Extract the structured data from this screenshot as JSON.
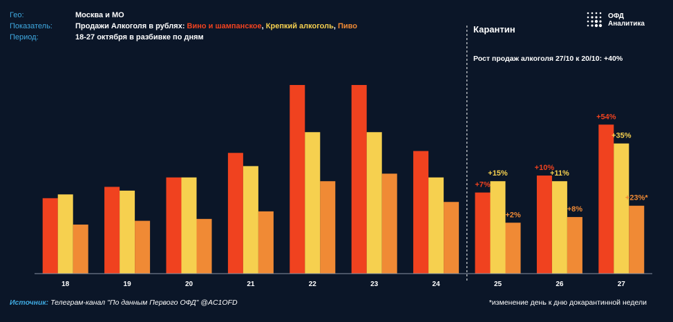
{
  "meta": {
    "geo_label": "Гео:",
    "geo_value": "Москва и МО",
    "indicator_label": "Показатель:",
    "indicator_prefix": "Продажи Алкоголя в рублях: ",
    "indicator_wine": "Вино и шампанское",
    "indicator_sep1": ", ",
    "indicator_strong": "Крепкий алкоголь",
    "indicator_sep2": ", ",
    "indicator_beer": "Пиво",
    "period_label": "Период:",
    "period_value": "18-27 октября в разбивке по дням"
  },
  "logo": {
    "icon": "dots-logo-icon",
    "line1": "ОФД",
    "line2": "Аналитика"
  },
  "quarantine": {
    "title": "Карантин",
    "growth_note": "Рост продаж алкоголя 27/10 к 20/10: +40%"
  },
  "footer": {
    "source_label": "Источник:",
    "source_text": " Телеграм-канал \"По данным Первого ОФД\" @AC1OFD",
    "note": "*изменение день к дню докарантинной недели"
  },
  "colors": {
    "wine": "#f0421f",
    "strong": "#f6d04f",
    "beer": "#f08a35",
    "background": "#0b1628"
  },
  "chart_data": {
    "type": "bar",
    "categories": [
      "18",
      "19",
      "20",
      "21",
      "22",
      "23",
      "24",
      "25",
      "26",
      "27"
    ],
    "series": [
      {
        "name": "Вино и шампанское",
        "values": [
          40,
          46,
          51,
          64,
          100,
          100,
          65,
          43,
          52,
          79
        ]
      },
      {
        "name": "Крепкий алкоголь",
        "values": [
          42,
          44,
          51,
          57,
          75,
          75,
          51,
          49,
          49,
          69
        ]
      },
      {
        "name": "Пиво",
        "values": [
          26,
          28,
          29,
          33,
          49,
          53,
          38,
          27,
          30,
          36
        ]
      }
    ],
    "annotations": [
      {
        "category": "25",
        "series": 0,
        "text": "+7%"
      },
      {
        "category": "25",
        "series": 1,
        "text": "+15%"
      },
      {
        "category": "25",
        "series": 2,
        "text": "+2%"
      },
      {
        "category": "26",
        "series": 0,
        "text": "+10%"
      },
      {
        "category": "26",
        "series": 1,
        "text": "+11%"
      },
      {
        "category": "26",
        "series": 2,
        "text": "+8%"
      },
      {
        "category": "27",
        "series": 0,
        "text": "+54%"
      },
      {
        "category": "27",
        "series": 1,
        "text": "+35%"
      },
      {
        "category": "27",
        "series": 2,
        "text": "+23%*"
      }
    ],
    "divider_after_category": "24",
    "ylim": [
      0,
      100
    ],
    "grid": false,
    "title": "",
    "xlabel": "",
    "ylabel": ""
  }
}
